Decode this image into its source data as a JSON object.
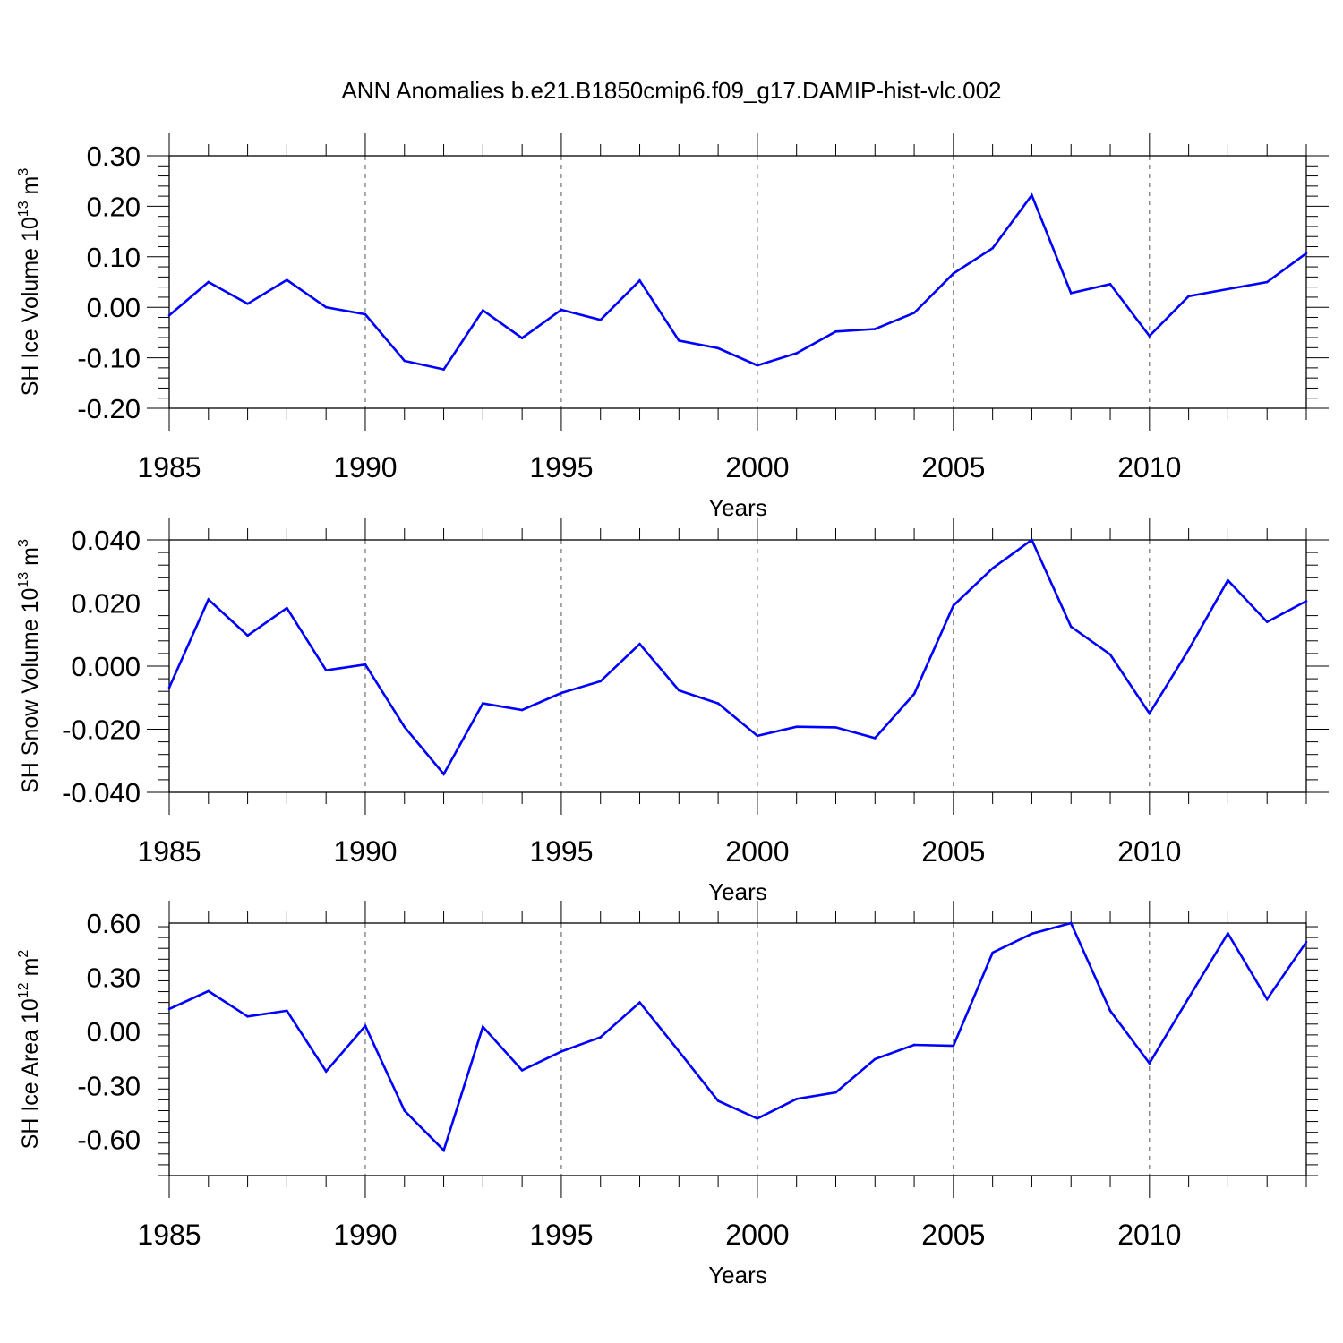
{
  "figure_title": "ANN Anomalies b.e21.B1850cmip6.f09_g17.DAMIP-hist-vlc.002",
  "line_color": "#0000ff",
  "chart_data": [
    {
      "type": "line",
      "title": "",
      "xlabel": "Years",
      "ylabel": {
        "main": "SH Ice Volume 10",
        "exp": "13",
        "unit": " m",
        "unit_exp": "3"
      },
      "xlim": [
        1985,
        2014
      ],
      "ylim": [
        -0.2,
        0.3
      ],
      "xticks": [
        1985,
        1990,
        1995,
        2000,
        2005,
        2010
      ],
      "xtick_labels": [
        "1985",
        "1990",
        "1995",
        "2000",
        "2005",
        "2010"
      ],
      "yticks": [
        -0.2,
        -0.1,
        0.0,
        0.1,
        0.2,
        0.3
      ],
      "ytick_labels": [
        "-0.20",
        "-0.10",
        "0.00",
        "0.10",
        "0.20",
        "0.30"
      ],
      "grid": "vertical-dashed",
      "series": [
        {
          "name": "SH Ice Volume",
          "x": [
            1985,
            1986,
            1987,
            1988,
            1989,
            1990,
            1991,
            1992,
            1993,
            1994,
            1995,
            1996,
            1997,
            1998,
            1999,
            2000,
            2001,
            2002,
            2003,
            2004,
            2005,
            2006,
            2007,
            2008,
            2009,
            2010,
            2011,
            2012,
            2013,
            2014
          ],
          "values": [
            -0.016,
            0.05,
            0.007,
            0.054,
            0.0,
            -0.014,
            -0.106,
            -0.123,
            -0.006,
            -0.061,
            -0.005,
            -0.025,
            0.053,
            -0.066,
            -0.081,
            -0.115,
            -0.091,
            -0.048,
            -0.043,
            -0.011,
            0.067,
            0.117,
            0.222,
            0.028,
            0.046,
            -0.057,
            0.022,
            0.036,
            0.05,
            0.107
          ]
        }
      ]
    },
    {
      "type": "line",
      "title": "",
      "xlabel": "Years",
      "ylabel": {
        "main": "SH Snow Volume 10",
        "exp": "13",
        "unit": " m",
        "unit_exp": "3"
      },
      "xlim": [
        1985,
        2014
      ],
      "ylim": [
        -0.04,
        0.04
      ],
      "xticks": [
        1985,
        1990,
        1995,
        2000,
        2005,
        2010
      ],
      "xtick_labels": [
        "1985",
        "1990",
        "1995",
        "2000",
        "2005",
        "2010"
      ],
      "yticks": [
        -0.04,
        -0.02,
        0.0,
        0.02,
        0.04
      ],
      "ytick_labels": [
        "-0.040",
        "-0.020",
        "0.000",
        "0.020",
        "0.040"
      ],
      "grid": "vertical-dashed",
      "series": [
        {
          "name": "SH Snow Volume",
          "x": [
            1985,
            1986,
            1987,
            1988,
            1989,
            1990,
            1991,
            1992,
            1993,
            1994,
            1995,
            1996,
            1997,
            1998,
            1999,
            2000,
            2001,
            2002,
            2003,
            2004,
            2005,
            2006,
            2007,
            2008,
            2009,
            2010,
            2011,
            2012,
            2013,
            2014
          ],
          "values": [
            -0.0068,
            0.0211,
            0.0097,
            0.0184,
            -0.0013,
            0.0005,
            -0.0193,
            -0.0342,
            -0.0118,
            -0.0139,
            -0.0085,
            -0.0048,
            0.007,
            -0.0077,
            -0.0118,
            -0.0221,
            -0.0192,
            -0.0194,
            -0.0228,
            -0.0088,
            0.0192,
            0.031,
            0.04,
            0.0125,
            0.0037,
            -0.015,
            0.0052,
            0.0272,
            0.014,
            0.0206
          ]
        }
      ]
    },
    {
      "type": "line",
      "title": "",
      "xlabel": "Years",
      "ylabel": {
        "main": "SH Ice Area 10",
        "exp": "12",
        "unit": " m",
        "unit_exp": "2"
      },
      "xlim": [
        1985,
        2014
      ],
      "ylim": [
        -0.8,
        0.6
      ],
      "xticks": [
        1985,
        1990,
        1995,
        2000,
        2005,
        2010
      ],
      "xtick_labels": [
        "1985",
        "1990",
        "1995",
        "2000",
        "2005",
        "2010"
      ],
      "yticks": [
        -0.6,
        -0.3,
        0.0,
        0.3,
        0.6
      ],
      "ytick_labels": [
        "-0.60",
        "-0.30",
        "0.00",
        "0.30",
        "0.60"
      ],
      "grid": "vertical-dashed",
      "series": [
        {
          "name": "SH Ice Area",
          "x": [
            1985,
            1986,
            1987,
            1988,
            1989,
            1990,
            1991,
            1992,
            1993,
            1994,
            1995,
            1996,
            1997,
            1998,
            1999,
            2000,
            2001,
            2002,
            2003,
            2004,
            2005,
            2006,
            2007,
            2008,
            2009,
            2010,
            2011,
            2012,
            2013,
            2014
          ],
          "values": [
            0.124,
            0.223,
            0.082,
            0.114,
            -0.222,
            0.03,
            -0.44,
            -0.66,
            0.025,
            -0.216,
            -0.112,
            -0.033,
            0.16,
            -0.111,
            -0.386,
            -0.484,
            -0.375,
            -0.339,
            -0.154,
            -0.075,
            -0.08,
            0.436,
            0.541,
            0.6,
            0.114,
            -0.177,
            0.185,
            0.543,
            0.178,
            0.495
          ]
        }
      ]
    }
  ]
}
